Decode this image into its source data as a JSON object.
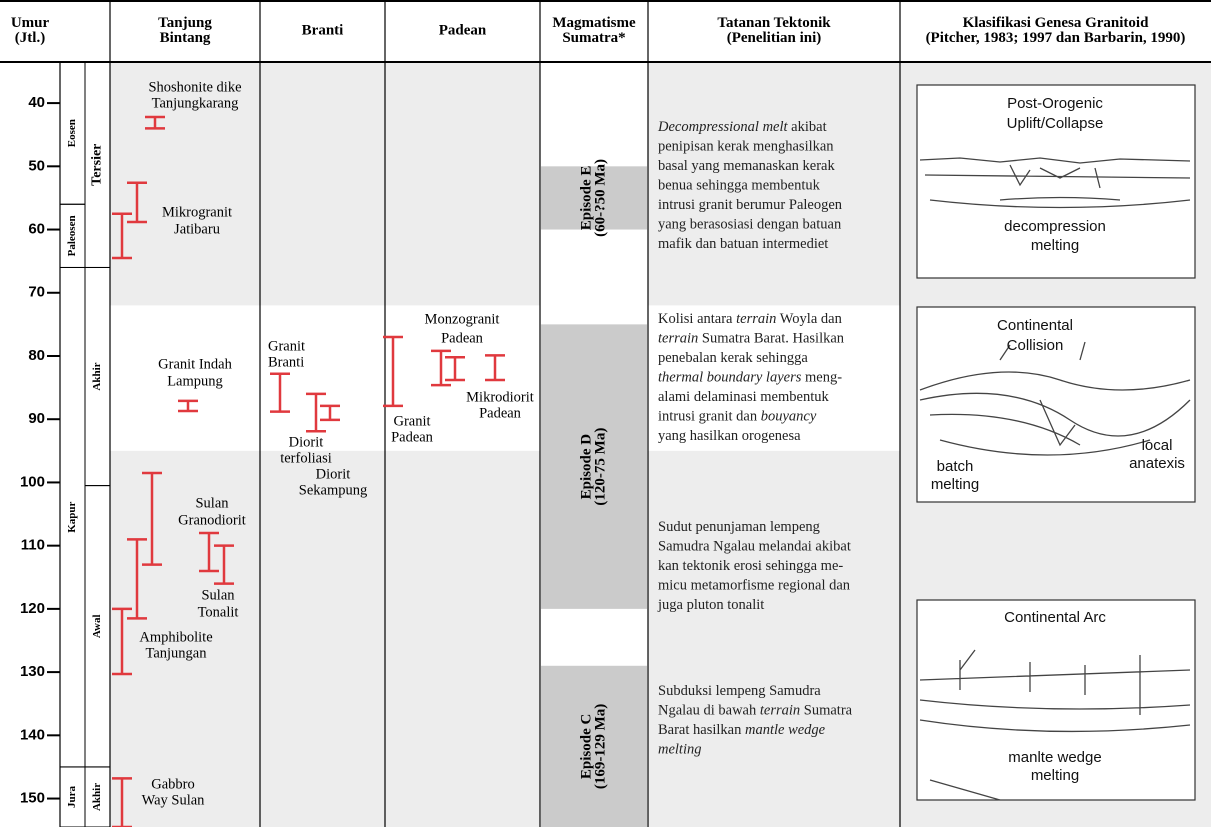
{
  "header": {
    "columns": [
      [
        "Umur",
        "(Jtl.)"
      ],
      [
        "Tanjung",
        "Bintang"
      ],
      [
        "Branti"
      ],
      [
        "Padean"
      ],
      [
        "Magmatisme",
        "Sumatra*"
      ],
      [
        "Tatanan Tektonik",
        "(Penelitian ini)"
      ],
      [
        "Klasifikasi Genesa Granitoid",
        "(Pitcher, 1983; 1997 dan Barbarin, 1990)"
      ]
    ]
  },
  "age_axis": {
    "lim": [
      33.5,
      154.5
    ],
    "ticks": [
      40,
      50,
      60,
      70,
      80,
      90,
      100,
      110,
      120,
      130,
      140,
      150
    ]
  },
  "time_units": {
    "left": [
      {
        "label": "Eosen",
        "range": [
          33.5,
          56
        ]
      },
      {
        "label": "Paleosen",
        "range": [
          56,
          66
        ]
      },
      {
        "label": "Kapur",
        "range": [
          66,
          145
        ]
      },
      {
        "label": "Jura",
        "range": [
          145,
          154.5
        ]
      }
    ],
    "right": [
      {
        "label": "Tersier",
        "range": [
          33.5,
          66
        ]
      },
      {
        "label": "Akhir",
        "range": [
          66,
          100.5
        ]
      },
      {
        "label": "Awal",
        "range": [
          100.5,
          145
        ]
      },
      {
        "label": "Akhir",
        "range": [
          145,
          154.5
        ]
      }
    ]
  },
  "collision_interval": [
    72,
    95
  ],
  "episodes": [
    {
      "label": [
        "Episode E",
        "(60-?50 Ma)"
      ],
      "range": [
        50,
        60
      ]
    },
    {
      "label": [
        "Episode D",
        "(120-75 Ma)"
      ],
      "range": [
        75,
        120
      ]
    },
    {
      "label": [
        "Episode C",
        "(169-129 Ma)"
      ],
      "range": [
        129,
        154.5
      ]
    }
  ],
  "samples": [
    {
      "label": [
        "Shoshonite dike",
        "Tanjungkarang"
      ],
      "bars": [
        [
          42.2,
          44.0
        ]
      ]
    },
    {
      "label": [
        "Mikrogranit",
        "Jatibaru"
      ],
      "bars": [
        [
          52.6,
          58.8
        ],
        [
          57.5,
          64.5
        ]
      ]
    },
    {
      "label": [
        "Granit Indah",
        "Lampung"
      ],
      "bars": [
        [
          87.1,
          88.7
        ]
      ]
    },
    {
      "label": [
        "Sulan",
        "Granodiorit"
      ],
      "bars": [
        [
          98.5,
          113
        ],
        [
          109,
          121.5
        ]
      ]
    },
    {
      "label": [
        "Sulan",
        "Tonalit"
      ],
      "bars": [
        [
          108,
          114
        ],
        [
          110,
          116
        ]
      ]
    },
    {
      "label": [
        "Amphibolite",
        "Tanjungan"
      ],
      "bars": [
        [
          120,
          130.3
        ]
      ]
    },
    {
      "label": [
        "Gabbro",
        "Way Sulan"
      ],
      "bars": [
        [
          146.8,
          154.5
        ]
      ]
    },
    {
      "label": [
        "Granit",
        "Branti"
      ],
      "bars": [
        [
          82.8,
          88.8
        ]
      ]
    },
    {
      "label": [
        "Diorit",
        "terfoliasi"
      ],
      "bars": [
        [
          86,
          91.9
        ]
      ]
    },
    {
      "label": [
        "Diorit",
        "Sekampung"
      ],
      "bars": [
        [
          87.9,
          90.1
        ]
      ]
    },
    {
      "label": [
        "Monzogranit",
        "Padean"
      ],
      "bars": [
        [
          79.2,
          84.6
        ],
        [
          80.2,
          83.8
        ]
      ]
    },
    {
      "label": [
        "Granit",
        "Padean"
      ],
      "bars": [
        [
          77,
          87.9
        ]
      ]
    },
    {
      "label": [
        "Mikrodiorit",
        "Padean"
      ],
      "bars": [
        [
          79.9,
          83.8
        ]
      ]
    }
  ],
  "tectonic_notes": [
    [
      [
        {
          "text": "Decompressional melt",
          "italic": true
        },
        " akibat"
      ],
      [
        "penipisan kerak menghasilkan"
      ],
      [
        "basal yang memanaskan kerak"
      ],
      [
        "benua sehingga membentuk"
      ],
      [
        "intrusi granit berumur Paleogen"
      ],
      [
        "yang berasosiasi dengan batuan"
      ],
      [
        "mafik dan batuan intermediet"
      ]
    ],
    [
      [
        "Kolisi antara ",
        {
          "text": "terrain",
          "italic": true
        },
        " Woyla dan"
      ],
      [
        {
          "text": "terrain",
          "italic": true
        },
        " Sumatra Barat. Hasilkan"
      ],
      [
        "penebalan kerak sehingga"
      ],
      [
        {
          "text": "thermal boundary layers",
          "italic": true
        },
        " meng-"
      ],
      [
        "alami delaminasi membentuk"
      ],
      [
        "intrusi granit dan ",
        {
          "text": "bouyancy",
          "italic": true
        }
      ],
      [
        "yang hasilkan orogenesa"
      ]
    ],
    [
      [
        "Sudut penunjaman lempeng"
      ],
      [
        "Samudra Ngalau melandai akibat"
      ],
      [
        "kan tektonik erosi sehingga me-"
      ],
      [
        "micu metamorfisme regional dan"
      ],
      [
        "juga pluton tonalit"
      ]
    ],
    [
      [
        "Subduksi lempeng Samudra"
      ],
      [
        "Ngalau di bawah ",
        {
          "text": "terrain",
          "italic": true
        },
        " Sumatra"
      ],
      [
        "Barat hasilkan ",
        {
          "text": "mantle wedge",
          "italic": true
        }
      ],
      [
        {
          "text": "melting",
          "italic": true
        }
      ]
    ]
  ],
  "genesis_panels": [
    {
      "labels": [
        [
          "Post-Orogenic",
          "Uplift/Collapse"
        ],
        [
          "decompression",
          "melting"
        ]
      ]
    },
    {
      "labels": [
        [
          "Continental",
          "Collision"
        ],
        [
          "local",
          "anatexis"
        ],
        [
          "batch",
          "melting"
        ]
      ]
    },
    {
      "labels": [
        [
          "Continental Arc"
        ],
        [
          "manlte wedge",
          "melting"
        ]
      ]
    }
  ]
}
